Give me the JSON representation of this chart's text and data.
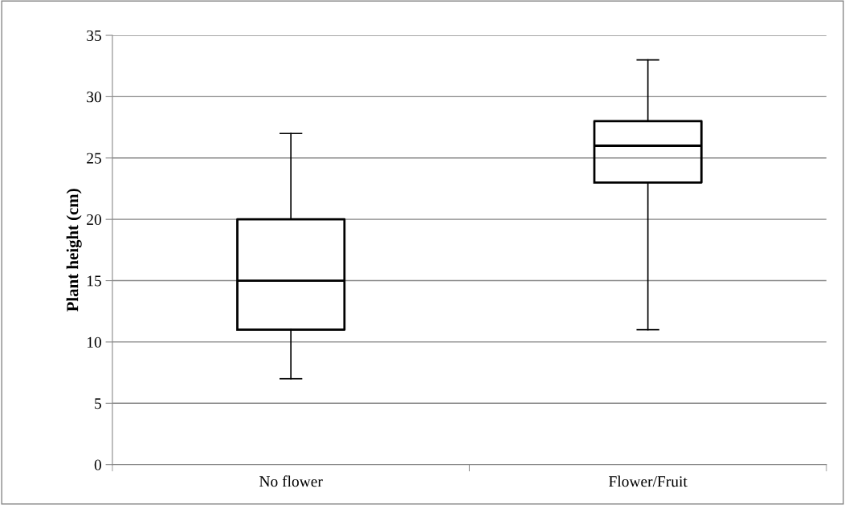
{
  "chart_data": {
    "type": "box",
    "ylabel": "Plant height (cm)",
    "categories": [
      "No flower",
      "Flower/Fruit"
    ],
    "boxes": [
      {
        "low": 7,
        "q1": 11,
        "median": 15,
        "q3": 20,
        "high": 27
      },
      {
        "low": 11,
        "q1": 23,
        "median": 26,
        "q3": 28,
        "high": 33
      }
    ],
    "ylim": [
      0,
      35
    ],
    "yticks": [
      0,
      5,
      10,
      15,
      20,
      25,
      30,
      35
    ],
    "grid": "y"
  }
}
